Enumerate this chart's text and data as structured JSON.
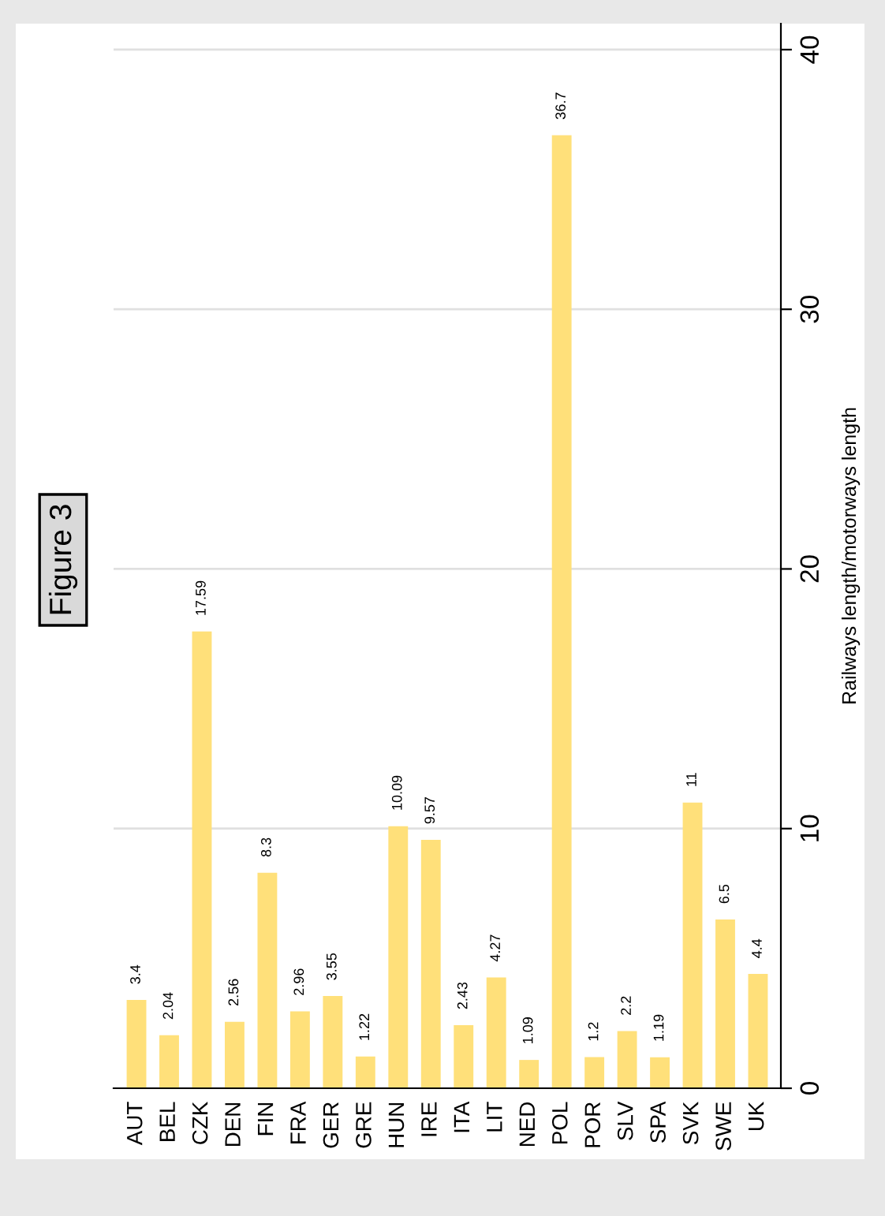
{
  "chart_data": {
    "type": "bar",
    "title": "Figure 3",
    "ylabel": "Railways length/motorways length",
    "categories": [
      "AUT",
      "BEL",
      "CZK",
      "DEN",
      "FIN",
      "FRA",
      "GER",
      "GRE",
      "HUN",
      "IRE",
      "ITA",
      "LIT",
      "NED",
      "POL",
      "POR",
      "SLV",
      "SPA",
      "SVK",
      "SWE",
      "UK"
    ],
    "values": [
      3.4,
      2.04,
      17.59,
      2.56,
      8.3,
      2.96,
      3.55,
      1.22,
      10.09,
      9.57,
      2.43,
      4.27,
      1.09,
      36.7,
      1.2,
      2.2,
      1.19,
      11,
      6.5,
      4.4
    ],
    "color": "#ffe07a",
    "ylim": [
      0,
      41
    ],
    "yticks": [
      0,
      10,
      20,
      30,
      40
    ],
    "grid": "y",
    "data_labels": true
  }
}
